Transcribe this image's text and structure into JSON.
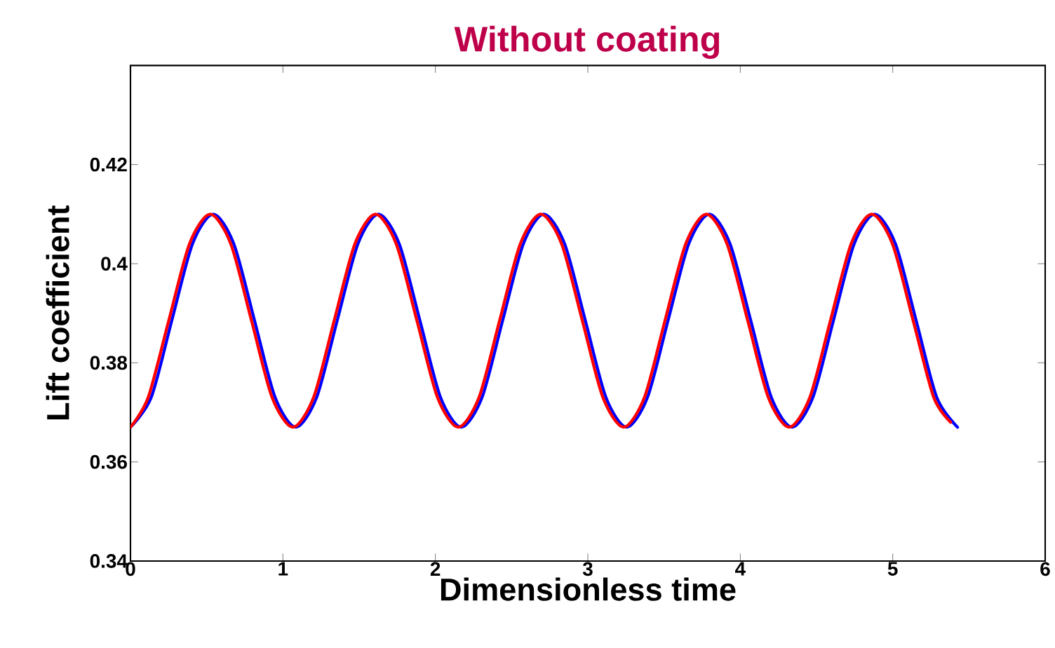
{
  "chart_data": {
    "type": "line",
    "title": "Without coating",
    "xlabel": "Dimensionless time",
    "ylabel": "Lift coefficient",
    "xlim": [
      0,
      6
    ],
    "ylim": [
      0.34,
      0.44
    ],
    "xticks": [
      0,
      1,
      2,
      3,
      4,
      5,
      6
    ],
    "yticks": [
      0.34,
      0.36,
      0.38,
      0.4,
      0.42
    ],
    "marker": "none",
    "line_style": "solid",
    "series": [
      {
        "color": "#0000ff",
        "x": [
          0,
          0.136,
          0.271,
          0.407,
          0.543,
          0.678,
          0.814,
          0.949,
          1.085,
          1.221,
          1.356,
          1.492,
          1.627,
          1.763,
          1.899,
          2.034,
          2.17,
          2.306,
          2.441,
          2.577,
          2.712,
          2.848,
          2.984,
          3.119,
          3.255,
          3.391,
          3.526,
          3.662,
          3.797,
          3.933,
          4.069,
          4.204,
          4.34,
          4.476,
          4.611,
          4.747,
          4.882,
          5.018,
          5.154,
          5.289,
          5.425
        ],
        "values": [
          0.367,
          0.373,
          0.3885,
          0.404,
          0.41,
          0.404,
          0.3885,
          0.373,
          0.367,
          0.373,
          0.3885,
          0.404,
          0.41,
          0.404,
          0.3885,
          0.373,
          0.367,
          0.373,
          0.3885,
          0.404,
          0.41,
          0.404,
          0.3885,
          0.373,
          0.367,
          0.373,
          0.3885,
          0.404,
          0.41,
          0.404,
          0.3885,
          0.373,
          0.367,
          0.373,
          0.3885,
          0.404,
          0.41,
          0.404,
          0.3885,
          0.373,
          0.367
        ]
      },
      {
        "color": "#ff0000",
        "x": [
          0,
          0.116,
          0.251,
          0.387,
          0.523,
          0.658,
          0.794,
          0.929,
          1.065,
          1.201,
          1.336,
          1.472,
          1.607,
          1.743,
          1.879,
          2.014,
          2.15,
          2.286,
          2.421,
          2.557,
          2.692,
          2.828,
          2.964,
          3.099,
          3.235,
          3.371,
          3.506,
          3.642,
          3.777,
          3.913,
          4.049,
          4.184,
          4.32,
          4.456,
          4.591,
          4.727,
          4.862,
          4.998,
          5.134,
          5.269,
          5.38
        ],
        "values": [
          0.367,
          0.373,
          0.3885,
          0.404,
          0.41,
          0.404,
          0.3885,
          0.373,
          0.367,
          0.373,
          0.3885,
          0.404,
          0.41,
          0.404,
          0.3885,
          0.373,
          0.367,
          0.373,
          0.3885,
          0.404,
          0.41,
          0.404,
          0.3885,
          0.373,
          0.367,
          0.373,
          0.3885,
          0.404,
          0.41,
          0.404,
          0.3885,
          0.373,
          0.367,
          0.373,
          0.3885,
          0.404,
          0.41,
          0.404,
          0.3885,
          0.373,
          0.368
        ]
      }
    ]
  }
}
